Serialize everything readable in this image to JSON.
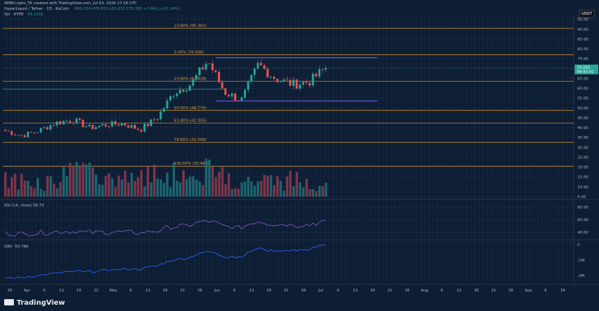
{
  "header": {
    "published": "AMBCrypto_TA created with TradingView.com, Jul 03, 2026 17:16 UTC",
    "symbol": "HyperLiquid / Tether · 1D · KuCoin",
    "ohlc": "O63.234  H70.953  L63.232  C70.265  +7.041 (+11.14%)",
    "vol_label": "Vol · HYPE",
    "vol_value": "54.131K"
  },
  "quote_currency": "USDT",
  "last_price": "70.255",
  "countdown": "06:43:41",
  "fib_levels": [
    {
      "label": "23.60% (90.382)",
      "price": 90.382
    },
    {
      "label": "0.00% (76.958)",
      "price": 76.958
    },
    {
      "label": "23.60% (63.628)",
      "price": 63.628
    },
    {
      "label": "50.00% (48.779)",
      "price": 48.779
    },
    {
      "label": "61.80% (42.355)",
      "price": 42.355
    },
    {
      "label": "78.60% (32.568)",
      "price": 32.568
    },
    {
      "label": "100.00% (20.483)",
      "price": 20.483
    }
  ],
  "rsi": {
    "label": "RSI (14, close)",
    "value": "58.70"
  },
  "obv": {
    "label": "OBV",
    "value": "-50.78K"
  },
  "price_axis": [
    "95.00",
    "90.00",
    "85.00",
    "80.00",
    "75.00",
    "70.00",
    "65.00",
    "60.00",
    "55.00",
    "50.00",
    "45.00",
    "40.00",
    "35.00",
    "30.00",
    "25.00",
    "20.00",
    "15.00",
    "10.00",
    "5.00"
  ],
  "rsi_axis": [
    "80.00",
    "60.00",
    "40.00"
  ],
  "obv_axis": [
    "0",
    "-1M",
    "-2M"
  ],
  "time_axis": [
    "26",
    "Apr",
    "6",
    "11",
    "16",
    "21",
    "May",
    "6",
    "11",
    "16",
    "21",
    "26",
    "Jun",
    "6",
    "11",
    "16",
    "21",
    "26",
    "Jul",
    "6",
    "11",
    "16",
    "21",
    "26",
    "Aug",
    "6",
    "11",
    "16",
    "21",
    "26",
    "Sep",
    "6",
    "16"
  ],
  "brand": "TradingView",
  "colors": {
    "up": "#26a69a",
    "down": "#ef5350",
    "fib": "#e8a33d",
    "channel": "#7b61ff",
    "rsi": "#7e57c2",
    "obv": "#2962ff",
    "bg": "#0d1d33"
  },
  "chart_data": {
    "type": "candlestick",
    "x": [
      "Mar 26",
      "Apr 1",
      "Apr 6",
      "Apr 11",
      "Apr 16",
      "Apr 21",
      "May 1",
      "May 6",
      "May 11",
      "May 16",
      "May 21",
      "May 26",
      "Jun 1",
      "Jun 6",
      "Jun 11",
      "Jun 16",
      "Jun 21",
      "Jun 26",
      "Jul 1",
      "Jul 3"
    ],
    "close": [
      38.5,
      36.0,
      38.5,
      42.5,
      44.0,
      40.0,
      41.5,
      42.0,
      39.0,
      45.0,
      58.0,
      62.0,
      74.0,
      58.0,
      54.0,
      72.0,
      65.0,
      62.0,
      63.2,
      70.3
    ],
    "channel": {
      "upper": 75.5,
      "lower": 53.5
    },
    "ylim": [
      5,
      97
    ]
  }
}
